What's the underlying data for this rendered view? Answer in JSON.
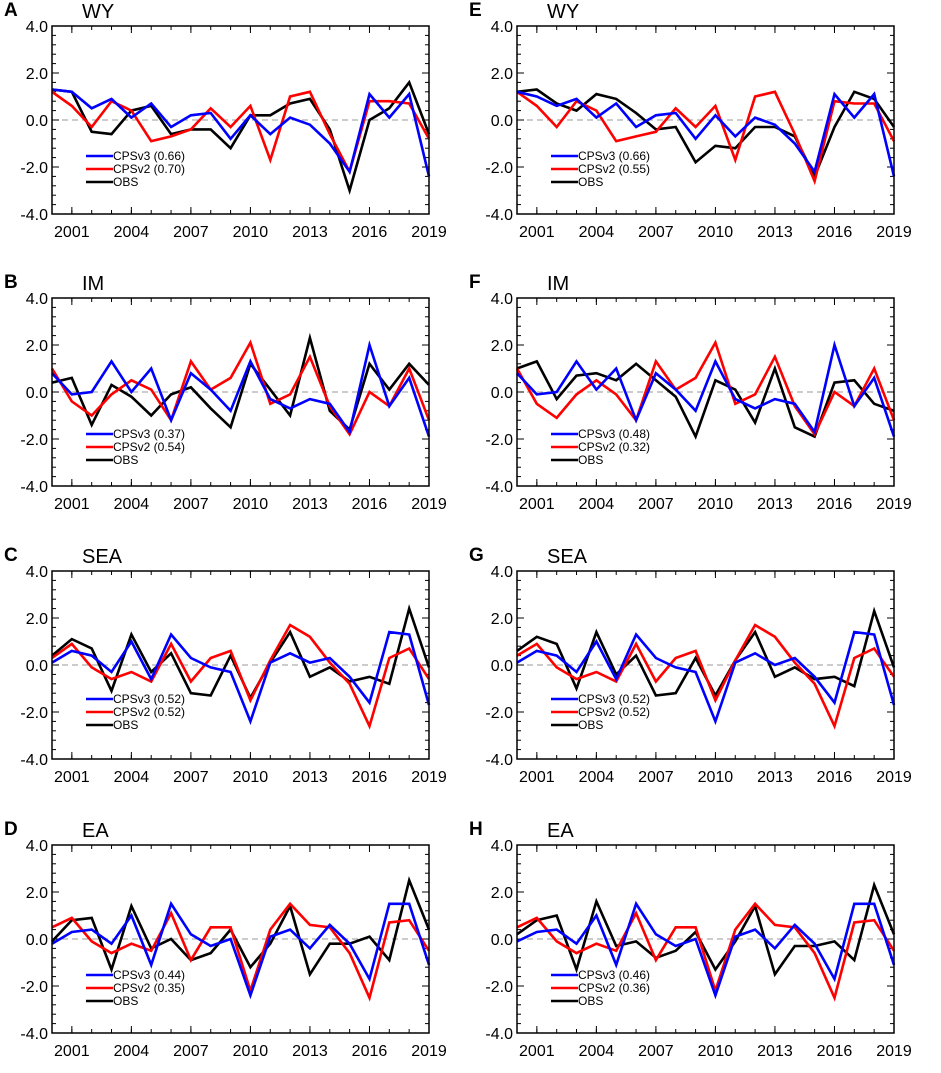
{
  "colors": {
    "CPSv3": "#0000ff",
    "CPSv2": "#ff0000",
    "OBS": "#000000",
    "zero_line": "#999999"
  },
  "chart_data": [
    {
      "type": "line",
      "panel": "A",
      "title": "WY",
      "x": [
        2000,
        2001,
        2002,
        2003,
        2004,
        2005,
        2006,
        2007,
        2008,
        2009,
        2010,
        2011,
        2012,
        2013,
        2014,
        2015,
        2016,
        2017,
        2018,
        2019
      ],
      "ylim": [
        -4,
        4
      ],
      "yticks": [
        "4.0",
        "2.0",
        "0.0",
        "-2.0",
        "-4.0"
      ],
      "xticks": [
        "2001",
        "2004",
        "2007",
        "2010",
        "2013",
        "2016",
        "2019"
      ],
      "series": [
        {
          "name": "CPSv3",
          "label": "CPSv3 (0.66)",
          "values": [
            1.3,
            1.2,
            0.5,
            0.9,
            0.1,
            0.7,
            -0.3,
            0.2,
            0.3,
            -0.8,
            0.2,
            -0.6,
            0.1,
            -0.2,
            -1.0,
            -2.2,
            1.1,
            0.1,
            1.1,
            -2.4
          ]
        },
        {
          "name": "CPSv2",
          "label": "CPSv2 (0.70)",
          "values": [
            1.2,
            0.6,
            -0.3,
            0.8,
            0.4,
            -0.9,
            -0.7,
            -0.4,
            0.5,
            -0.3,
            0.6,
            -1.7,
            1.0,
            1.2,
            -0.6,
            -2.2,
            0.8,
            0.8,
            0.7,
            -0.8
          ]
        },
        {
          "name": "OBS",
          "label": "OBS",
          "values": [
            1.3,
            1.2,
            -0.5,
            -0.6,
            0.4,
            0.6,
            -0.6,
            -0.4,
            -0.4,
            -1.2,
            0.2,
            0.2,
            0.7,
            0.9,
            -0.4,
            -3.0,
            0.0,
            0.5,
            1.6,
            -0.6
          ]
        }
      ]
    },
    {
      "type": "line",
      "panel": "B",
      "title": "IM",
      "x": [
        2000,
        2001,
        2002,
        2003,
        2004,
        2005,
        2006,
        2007,
        2008,
        2009,
        2010,
        2011,
        2012,
        2013,
        2014,
        2015,
        2016,
        2017,
        2018,
        2019
      ],
      "ylim": [
        -4,
        4
      ],
      "yticks": [
        "4.0",
        "2.0",
        "0.0",
        "-2.0",
        "-4.0"
      ],
      "xticks": [
        "2001",
        "2004",
        "2007",
        "2010",
        "2013",
        "2016",
        "2019"
      ],
      "series": [
        {
          "name": "CPSv3",
          "label": "CPSv3 (0.37)",
          "values": [
            0.8,
            -0.1,
            0.0,
            1.3,
            0.0,
            1.0,
            -1.2,
            0.8,
            0.1,
            -0.8,
            1.3,
            -0.3,
            -0.7,
            -0.3,
            -0.5,
            -1.7,
            2.0,
            -0.6,
            0.6,
            -1.9
          ]
        },
        {
          "name": "CPSv2",
          "label": "CPSv2 (0.54)",
          "values": [
            1.0,
            -0.4,
            -1.0,
            -0.1,
            0.5,
            0.1,
            -1.2,
            1.3,
            0.1,
            0.6,
            2.1,
            -0.5,
            -0.1,
            1.5,
            -0.6,
            -1.8,
            0.0,
            -0.6,
            1.0,
            -1.2
          ]
        },
        {
          "name": "OBS",
          "label": "OBS",
          "values": [
            0.4,
            0.6,
            -1.4,
            0.3,
            -0.2,
            -1.0,
            -0.1,
            0.2,
            -0.7,
            -1.5,
            1.2,
            0.1,
            -1.0,
            2.3,
            -0.8,
            -1.6,
            1.2,
            0.1,
            1.2,
            0.3
          ]
        }
      ]
    },
    {
      "type": "line",
      "panel": "C",
      "title": "SEA",
      "x": [
        2000,
        2001,
        2002,
        2003,
        2004,
        2005,
        2006,
        2007,
        2008,
        2009,
        2010,
        2011,
        2012,
        2013,
        2014,
        2015,
        2016,
        2017,
        2018,
        2019
      ],
      "ylim": [
        -4,
        4
      ],
      "yticks": [
        "4.0",
        "2.0",
        "0.0",
        "-2.0",
        "-4.0"
      ],
      "xticks": [
        "2001",
        "2004",
        "2007",
        "2010",
        "2013",
        "2016",
        "2019"
      ],
      "series": [
        {
          "name": "CPSv3",
          "label": "CPSv3 (0.52)",
          "values": [
            0.1,
            0.6,
            0.4,
            -0.3,
            1.0,
            -0.6,
            1.3,
            0.3,
            -0.1,
            -0.3,
            -2.4,
            0.1,
            0.5,
            0.1,
            0.3,
            -0.5,
            -1.6,
            1.4,
            1.3,
            -1.7
          ]
        },
        {
          "name": "CPSv2",
          "label": "CPSv2 (0.52)",
          "values": [
            0.3,
            0.9,
            -0.1,
            -0.6,
            -0.3,
            -0.7,
            0.9,
            -0.7,
            0.3,
            0.6,
            -1.5,
            0.2,
            1.7,
            1.2,
            0.1,
            -0.8,
            -2.6,
            0.3,
            0.7,
            -0.6
          ]
        },
        {
          "name": "OBS",
          "label": "OBS",
          "values": [
            0.4,
            1.1,
            0.7,
            -1.1,
            1.3,
            -0.3,
            0.5,
            -1.2,
            -1.3,
            0.4,
            -1.4,
            0.1,
            1.4,
            -0.5,
            -0.1,
            -0.7,
            -0.5,
            -0.8,
            2.4,
            -0.1
          ]
        }
      ]
    },
    {
      "type": "line",
      "panel": "D",
      "title": "EA",
      "x": [
        2000,
        2001,
        2002,
        2003,
        2004,
        2005,
        2006,
        2007,
        2008,
        2009,
        2010,
        2011,
        2012,
        2013,
        2014,
        2015,
        2016,
        2017,
        2018,
        2019
      ],
      "ylim": [
        -4,
        4
      ],
      "yticks": [
        "4.0",
        "2.0",
        "0.0",
        "-2.0",
        "-4.0"
      ],
      "xticks": [
        "2001",
        "2004",
        "2007",
        "2010",
        "2013",
        "2016",
        "2019"
      ],
      "series": [
        {
          "name": "CPSv3",
          "label": "CPSv3 (0.44)",
          "values": [
            -0.2,
            0.3,
            0.4,
            -0.2,
            1.0,
            -1.1,
            1.5,
            0.2,
            -0.3,
            0.0,
            -2.4,
            0.1,
            0.4,
            -0.4,
            0.6,
            -0.2,
            -1.7,
            1.5,
            1.5,
            -1.1
          ]
        },
        {
          "name": "CPSv2",
          "label": "CPSv2 (0.35)",
          "values": [
            0.5,
            0.9,
            -0.1,
            -0.6,
            -0.2,
            -0.5,
            1.1,
            -0.9,
            0.5,
            0.5,
            -2.2,
            0.4,
            1.5,
            0.6,
            0.5,
            -0.6,
            -2.5,
            0.7,
            0.8,
            -0.5
          ]
        },
        {
          "name": "OBS",
          "label": "OBS",
          "values": [
            -0.1,
            0.8,
            0.9,
            -1.3,
            1.4,
            -0.4,
            0.0,
            -0.9,
            -0.6,
            0.4,
            -1.2,
            -0.2,
            1.4,
            -1.5,
            -0.2,
            -0.2,
            0.1,
            -0.9,
            2.5,
            0.4
          ]
        }
      ]
    },
    {
      "type": "line",
      "panel": "E",
      "title": "WY",
      "x": [
        2000,
        2001,
        2002,
        2003,
        2004,
        2005,
        2006,
        2007,
        2008,
        2009,
        2010,
        2011,
        2012,
        2013,
        2014,
        2015,
        2016,
        2017,
        2018,
        2019
      ],
      "ylim": [
        -4,
        4
      ],
      "yticks": [
        "4.0",
        "2.0",
        "0.0",
        "-2.0",
        "-4.0"
      ],
      "xticks": [
        "2001",
        "2004",
        "2007",
        "2010",
        "2013",
        "2016",
        "2019"
      ],
      "series": [
        {
          "name": "CPSv3",
          "label": "CPSv3 (0.66)",
          "values": [
            1.2,
            1.0,
            0.6,
            0.9,
            0.1,
            0.7,
            -0.3,
            0.2,
            0.3,
            -0.8,
            0.2,
            -0.7,
            0.1,
            -0.2,
            -1.0,
            -2.2,
            1.1,
            0.1,
            1.1,
            -2.4
          ]
        },
        {
          "name": "CPSv2",
          "label": "CPSv2 (0.55)",
          "values": [
            1.2,
            0.6,
            -0.3,
            0.8,
            0.4,
            -0.9,
            -0.7,
            -0.5,
            0.5,
            -0.3,
            0.6,
            -1.7,
            1.0,
            1.2,
            -0.6,
            -2.6,
            0.8,
            0.7,
            0.7,
            -0.9
          ]
        },
        {
          "name": "OBS",
          "label": "OBS",
          "values": [
            1.2,
            1.3,
            0.7,
            0.4,
            1.1,
            0.9,
            0.3,
            -0.4,
            -0.3,
            -1.8,
            -1.1,
            -1.2,
            -0.3,
            -0.3,
            -0.7,
            -2.4,
            -0.3,
            1.2,
            0.9,
            -0.3
          ]
        }
      ]
    },
    {
      "type": "line",
      "panel": "F",
      "title": "IM",
      "x": [
        2000,
        2001,
        2002,
        2003,
        2004,
        2005,
        2006,
        2007,
        2008,
        2009,
        2010,
        2011,
        2012,
        2013,
        2014,
        2015,
        2016,
        2017,
        2018,
        2019
      ],
      "ylim": [
        -4,
        4
      ],
      "yticks": [
        "4.0",
        "2.0",
        "0.0",
        "-2.0",
        "-4.0"
      ],
      "xticks": [
        "2001",
        "2004",
        "2007",
        "2010",
        "2013",
        "2016",
        "2019"
      ],
      "series": [
        {
          "name": "CPSv3",
          "label": "CPSv3 (0.48)",
          "values": [
            0.8,
            -0.1,
            0.0,
            1.3,
            0.1,
            1.0,
            -1.2,
            0.8,
            0.1,
            -0.8,
            1.3,
            -0.3,
            -0.7,
            -0.3,
            -0.5,
            -1.7,
            2.0,
            -0.6,
            0.6,
            -1.9
          ]
        },
        {
          "name": "CPSv2",
          "label": "CPSv2 (0.32)",
          "values": [
            1.0,
            -0.5,
            -1.1,
            -0.1,
            0.5,
            -0.1,
            -1.2,
            1.3,
            0.1,
            0.6,
            2.1,
            -0.5,
            -0.1,
            1.5,
            -0.6,
            -1.8,
            0.0,
            -0.6,
            1.0,
            -1.2
          ]
        },
        {
          "name": "OBS",
          "label": "OBS",
          "values": [
            1.0,
            1.3,
            -0.3,
            0.7,
            0.8,
            0.5,
            1.2,
            0.5,
            -0.2,
            -1.9,
            0.5,
            0.1,
            -1.3,
            1.0,
            -1.5,
            -1.9,
            0.4,
            0.5,
            -0.5,
            -0.8
          ]
        }
      ]
    },
    {
      "type": "line",
      "panel": "G",
      "title": "SEA",
      "x": [
        2000,
        2001,
        2002,
        2003,
        2004,
        2005,
        2006,
        2007,
        2008,
        2009,
        2010,
        2011,
        2012,
        2013,
        2014,
        2015,
        2016,
        2017,
        2018,
        2019
      ],
      "ylim": [
        -4,
        4
      ],
      "yticks": [
        "4.0",
        "2.0",
        "0.0",
        "-2.0",
        "-4.0"
      ],
      "xticks": [
        "2001",
        "2004",
        "2007",
        "2010",
        "2013",
        "2016",
        "2019"
      ],
      "series": [
        {
          "name": "CPSv3",
          "label": "CPSv3 (0.52)",
          "values": [
            0.1,
            0.6,
            0.4,
            -0.3,
            1.0,
            -0.6,
            1.3,
            0.3,
            -0.1,
            -0.3,
            -2.4,
            0.1,
            0.5,
            0.0,
            0.3,
            -0.5,
            -1.6,
            1.4,
            1.3,
            -1.7
          ]
        },
        {
          "name": "CPSv2",
          "label": "CPSv2 (0.52)",
          "values": [
            0.4,
            0.9,
            -0.1,
            -0.6,
            -0.3,
            -0.7,
            0.9,
            -0.7,
            0.3,
            0.6,
            -1.5,
            0.2,
            1.7,
            1.2,
            0.1,
            -0.8,
            -2.6,
            0.3,
            0.7,
            -0.5
          ]
        },
        {
          "name": "OBS",
          "label": "OBS",
          "values": [
            0.6,
            1.2,
            0.9,
            -1.0,
            1.4,
            -0.4,
            0.4,
            -1.3,
            -1.2,
            0.3,
            -1.3,
            0.2,
            1.4,
            -0.5,
            -0.1,
            -0.6,
            -0.5,
            -0.9,
            2.3,
            -0.1
          ]
        }
      ]
    },
    {
      "type": "line",
      "panel": "H",
      "title": "EA",
      "x": [
        2000,
        2001,
        2002,
        2003,
        2004,
        2005,
        2006,
        2007,
        2008,
        2009,
        2010,
        2011,
        2012,
        2013,
        2014,
        2015,
        2016,
        2017,
        2018,
        2019
      ],
      "ylim": [
        -4,
        4
      ],
      "yticks": [
        "4.0",
        "2.0",
        "0.0",
        "-2.0",
        "-4.0"
      ],
      "xticks": [
        "2001",
        "2004",
        "2007",
        "2010",
        "2013",
        "2016",
        "2019"
      ],
      "series": [
        {
          "name": "CPSv3",
          "label": "CPSv3 (0.46)",
          "values": [
            -0.1,
            0.3,
            0.4,
            -0.2,
            1.0,
            -1.1,
            1.5,
            0.2,
            -0.3,
            0.0,
            -2.4,
            0.1,
            0.4,
            -0.4,
            0.6,
            -0.2,
            -1.7,
            1.5,
            1.5,
            -1.1
          ]
        },
        {
          "name": "CPSv2",
          "label": "CPSv2 (0.36)",
          "values": [
            0.5,
            0.9,
            -0.1,
            -0.6,
            -0.2,
            -0.5,
            1.1,
            -0.9,
            0.5,
            0.5,
            -2.2,
            0.4,
            1.5,
            0.6,
            0.5,
            -0.6,
            -2.5,
            0.7,
            0.8,
            -0.5
          ]
        },
        {
          "name": "OBS",
          "label": "OBS",
          "values": [
            0.2,
            0.8,
            1.0,
            -1.3,
            1.6,
            -0.3,
            -0.1,
            -0.8,
            -0.5,
            0.3,
            -1.3,
            -0.1,
            1.4,
            -1.5,
            -0.3,
            -0.3,
            -0.1,
            -0.9,
            2.3,
            0.2
          ]
        }
      ]
    }
  ]
}
